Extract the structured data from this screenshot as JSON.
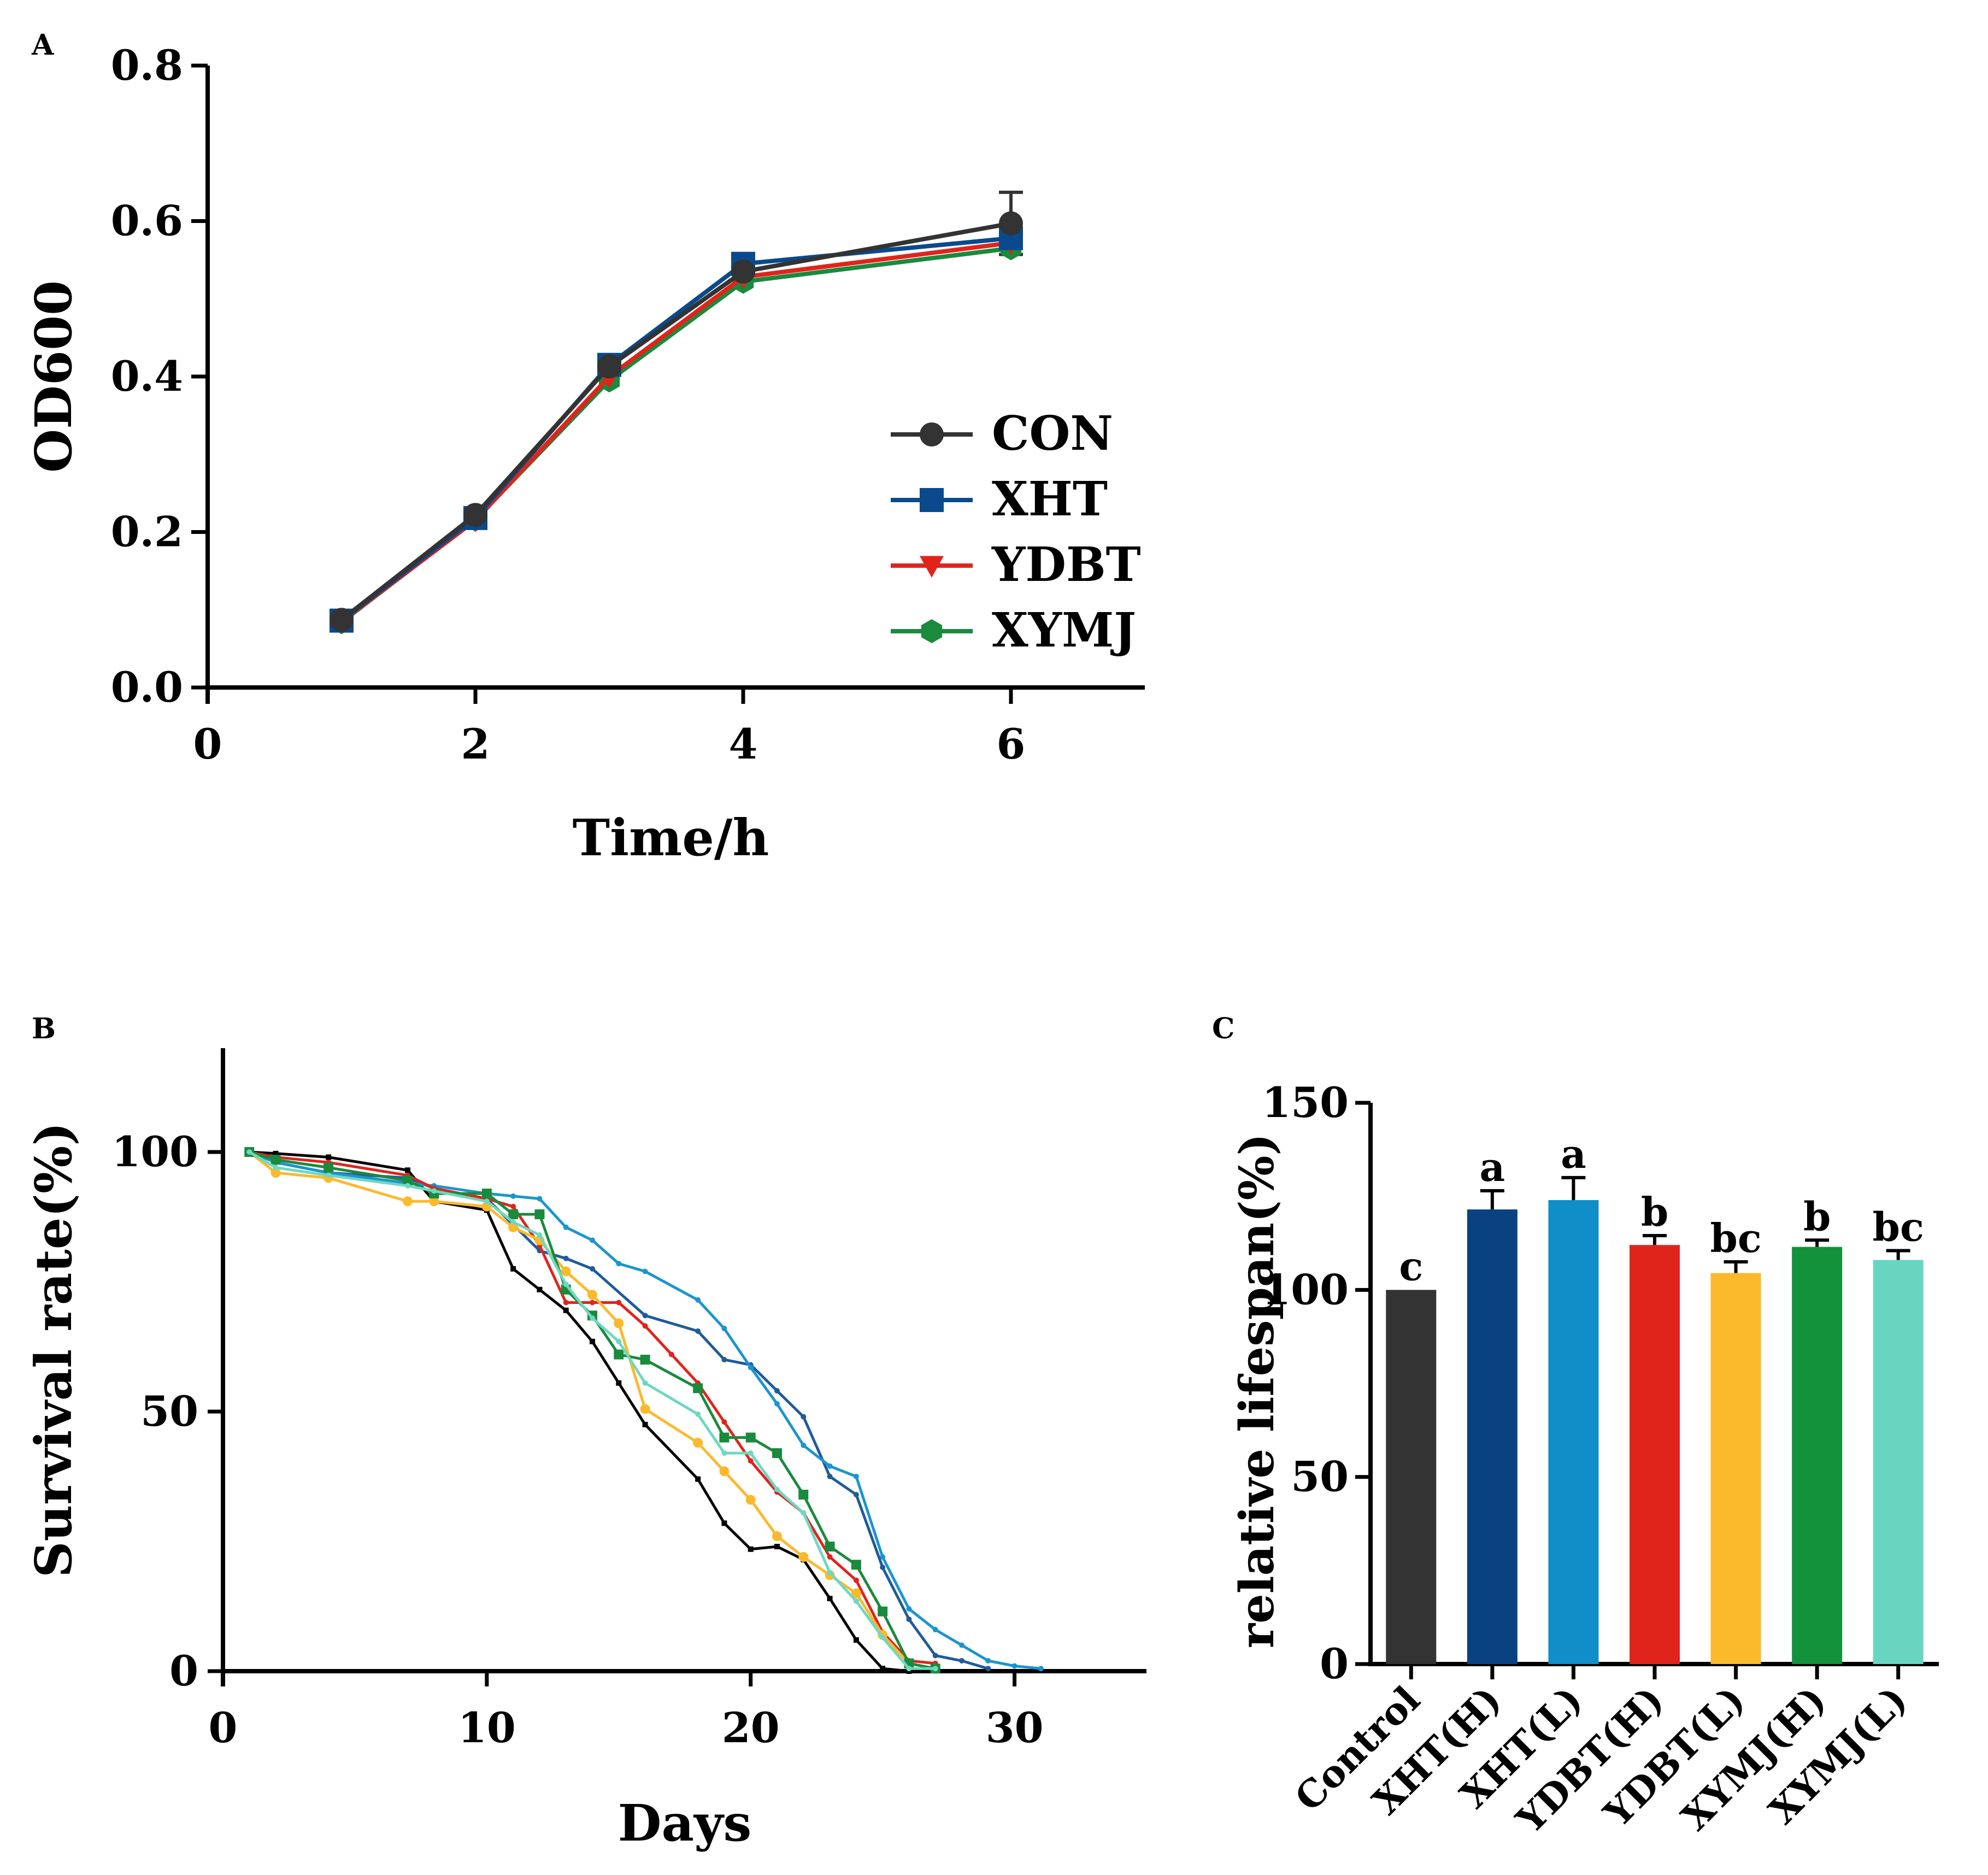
{
  "chart_data": [
    {
      "panel": "A",
      "type": "line",
      "title": "",
      "xlabel": "Time/h",
      "ylabel": "OD600",
      "xlim": [
        0,
        7
      ],
      "ylim": [
        0,
        0.8
      ],
      "xticks": [
        0,
        2,
        4,
        6
      ],
      "xtick_labels": [
        "0",
        "2",
        "4",
        "6"
      ],
      "yticks": [
        0,
        0.2,
        0.4,
        0.6,
        0.8
      ],
      "ytick_labels": [
        "0.0",
        "0.2",
        "0.4",
        "0.6",
        "0.8"
      ],
      "x": [
        1,
        2,
        3,
        4,
        6
      ],
      "legend_position": "center-right",
      "series": [
        {
          "name": "CON",
          "color": "#333333",
          "marker": "circle",
          "values": [
            0.087,
            0.222,
            0.413,
            0.535,
            0.597
          ],
          "errors": [
            0.004,
            0.005,
            0.008,
            0.006,
            0.04
          ]
        },
        {
          "name": "XHT",
          "color": "#0a4a8c",
          "marker": "square",
          "values": [
            0.086,
            0.218,
            0.415,
            0.545,
            0.578
          ],
          "errors": [
            0.004,
            0.005,
            0.008,
            0.006,
            0.012
          ]
        },
        {
          "name": "YDBT",
          "color": "#e0241c",
          "marker": "triangle-down",
          "values": [
            0.085,
            0.215,
            0.4,
            0.528,
            0.572
          ],
          "errors": [
            0.004,
            0.005,
            0.008,
            0.006,
            0.01
          ]
        },
        {
          "name": "XYMJ",
          "color": "#1a8a3c",
          "marker": "hexagon",
          "values": [
            0.084,
            0.216,
            0.395,
            0.522,
            0.565
          ],
          "errors": [
            0.004,
            0.005,
            0.008,
            0.006,
            0.01
          ]
        }
      ]
    },
    {
      "panel": "B",
      "type": "line",
      "title": "",
      "xlabel": "Days",
      "ylabel": "Survival rate(%)",
      "xlim": [
        0,
        35
      ],
      "ylim": [
        0,
        120
      ],
      "xticks": [
        0,
        10,
        20,
        30
      ],
      "xtick_labels": [
        "0",
        "10",
        "20",
        "30"
      ],
      "yticks": [
        0,
        50,
        100
      ],
      "ytick_labels": [
        "0",
        "50",
        "100"
      ],
      "series": [
        {
          "name": "Control",
          "color": "#000000",
          "marker": "small-square",
          "x": [
            1,
            2,
            4,
            7,
            8,
            10,
            11,
            12,
            13,
            14,
            15,
            16,
            18,
            19,
            20,
            21,
            22,
            23,
            24,
            25,
            26
          ],
          "values": [
            100,
            99.7,
            99,
            96.5,
            90.5,
            88.8,
            77.5,
            73.5,
            69.5,
            63.5,
            55.5,
            47.5,
            37,
            28.5,
            23.5,
            24,
            21.5,
            14,
            6,
            0.5,
            0
          ]
        },
        {
          "name": "XHT(H)",
          "color": "#1f5b9c",
          "marker": "small-dot",
          "x": [
            1,
            2,
            4,
            7,
            8,
            10,
            11,
            12,
            13,
            14,
            16,
            18,
            19,
            20,
            21,
            22,
            23,
            24,
            25,
            26,
            27,
            28,
            29
          ],
          "values": [
            100,
            98,
            96,
            95,
            93,
            91,
            86,
            81,
            79.5,
            77.5,
            68.5,
            65.5,
            60,
            59,
            54,
            49,
            37.5,
            34,
            20,
            10,
            3,
            2,
            0.5
          ]
        },
        {
          "name": "XHT(L)",
          "color": "#1a95cf",
          "marker": "small-dot",
          "x": [
            1,
            2,
            4,
            7,
            8,
            10,
            11,
            12,
            13,
            14,
            15,
            16,
            18,
            19,
            20,
            21,
            22,
            23,
            24,
            25,
            26,
            27,
            28,
            29,
            30,
            31
          ],
          "values": [
            100,
            98,
            96,
            94,
            93.5,
            92,
            91.5,
            91,
            85.5,
            83,
            78.5,
            77,
            71.5,
            66,
            58.5,
            51.5,
            43.5,
            39.5,
            37.5,
            22,
            12,
            8,
            5,
            2,
            1,
            0.5
          ]
        },
        {
          "name": "YDBT(H)",
          "color": "#e0241c",
          "marker": "small-dot",
          "x": [
            1,
            2,
            4,
            7,
            8,
            10,
            11,
            12,
            13,
            14,
            15,
            16,
            17,
            18,
            19,
            20,
            21,
            22,
            23,
            24,
            25,
            26,
            27
          ],
          "values": [
            100,
            99,
            98,
            95.5,
            93,
            91,
            89.5,
            82,
            71,
            71,
            71,
            66.5,
            61,
            55.5,
            48,
            40.5,
            34.5,
            30.5,
            22,
            17.5,
            7.5,
            2,
            1.5
          ]
        },
        {
          "name": "YDBT(L)",
          "color": "#fbb92c",
          "marker": "circle",
          "x": [
            1,
            2,
            4,
            7,
            8,
            10,
            11,
            12,
            13,
            14,
            15,
            16,
            18,
            19,
            20,
            21,
            22,
            23,
            24,
            25,
            26,
            27
          ],
          "values": [
            100,
            96,
            95,
            90.5,
            90.5,
            89.5,
            85.5,
            83,
            77,
            72.5,
            67,
            50.5,
            44,
            38.5,
            33,
            26,
            22,
            18.5,
            15,
            7,
            1.5,
            0.5
          ]
        },
        {
          "name": "XYMJ(H)",
          "color": "#1a8a3c",
          "marker": "square",
          "x": [
            1,
            2,
            4,
            7,
            8,
            10,
            11,
            12,
            13,
            14,
            15,
            16,
            18,
            19,
            20,
            21,
            22,
            23,
            24,
            25,
            26,
            27
          ],
          "values": [
            100,
            98.5,
            97,
            94.5,
            92,
            92,
            88,
            88,
            73.5,
            68.5,
            61,
            60,
            54.5,
            45,
            45,
            42,
            34,
            24,
            20.5,
            11.5,
            1.5,
            0.5
          ]
        },
        {
          "name": "XYMJ(L)",
          "color": "#6ed8c2",
          "marker": "small-dot",
          "x": [
            1,
            2,
            4,
            7,
            8,
            10,
            11,
            12,
            13,
            14,
            15,
            16,
            18,
            19,
            20,
            21,
            22,
            23,
            24,
            25,
            26,
            27
          ],
          "values": [
            100,
            97,
            95.5,
            93.5,
            92.5,
            90.5,
            86.5,
            84,
            74.5,
            68,
            63.5,
            55.5,
            49.5,
            42,
            42,
            35,
            30.5,
            19,
            13.5,
            6.5,
            0.5,
            0.5
          ]
        }
      ]
    },
    {
      "panel": "C",
      "type": "bar",
      "title": "",
      "xlabel": "",
      "ylabel": "relative lifespan(%)",
      "ylim": [
        0,
        150
      ],
      "yticks": [
        0,
        50,
        100,
        150
      ],
      "ytick_labels": [
        "0",
        "50",
        "100",
        "150"
      ],
      "categories": [
        "Control",
        "XHT(H)",
        "XHT(L)",
        "YDBT(H)",
        "YDBT(L)",
        "XYMJ(H)",
        "XYMJ(L)"
      ],
      "values": [
        100,
        121.5,
        124,
        112,
        104.5,
        111.5,
        108
      ],
      "errors": [
        0,
        5,
        6,
        2.5,
        3,
        1.8,
        2.5
      ],
      "significance": [
        "c",
        "a",
        "a",
        "b",
        "bc",
        "b",
        "bc"
      ],
      "colors": [
        "#333333",
        "#0a4281",
        "#0f8ec8",
        "#e0241c",
        "#fbb92c",
        "#13923b",
        "#68d5c1"
      ]
    }
  ],
  "labels": {
    "panel_a": "A",
    "panel_b": "B",
    "panel_c": "C"
  }
}
